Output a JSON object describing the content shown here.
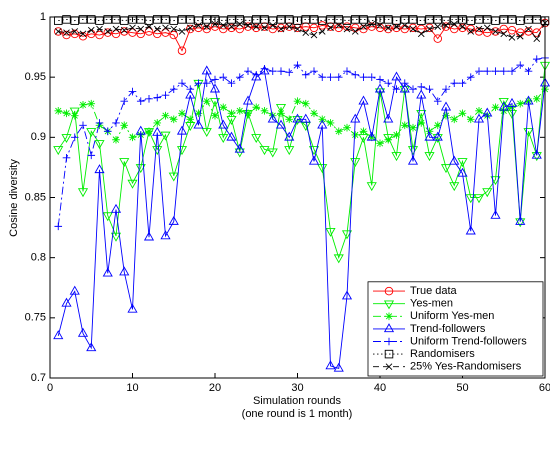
{
  "chart_data": {
    "type": "line",
    "xlabel": [
      "Simulation rounds",
      "(one round is 1 month)"
    ],
    "ylabel": "Cosine diversity",
    "x": [
      1,
      2,
      3,
      4,
      5,
      6,
      7,
      8,
      9,
      10,
      11,
      12,
      13,
      14,
      15,
      16,
      17,
      18,
      19,
      20,
      21,
      22,
      23,
      24,
      25,
      26,
      27,
      28,
      29,
      30,
      31,
      32,
      33,
      34,
      35,
      36,
      37,
      38,
      39,
      40,
      41,
      42,
      43,
      44,
      45,
      46,
      47,
      48,
      49,
      50,
      51,
      52,
      53,
      54,
      55,
      56,
      57,
      58,
      59,
      60
    ],
    "xlim": [
      0,
      60
    ],
    "xticks": [
      0,
      10,
      20,
      30,
      40,
      50,
      60
    ],
    "ylim": [
      0.7,
      1
    ],
    "yticks": [
      0.7,
      0.75,
      0.8,
      0.85,
      0.9,
      0.95,
      1
    ],
    "grid": false,
    "legend": "lower right",
    "series": [
      {
        "name": "True data",
        "color": "#ff0000",
        "marker": "o",
        "linestyle": "-",
        "values": [
          0.988,
          0.985,
          0.986,
          0.984,
          0.986,
          0.985,
          0.987,
          0.986,
          0.988,
          0.987,
          0.986,
          0.988,
          0.986,
          0.987,
          0.985,
          0.972,
          0.99,
          0.991,
          0.99,
          0.992,
          0.99,
          0.991,
          0.99,
          0.992,
          0.991,
          0.992,
          0.99,
          0.991,
          0.992,
          0.991,
          0.992,
          0.991,
          0.993,
          0.992,
          0.991,
          0.992,
          0.991,
          0.99,
          0.992,
          0.991,
          0.99,
          0.991,
          0.99,
          0.991,
          0.99,
          0.991,
          0.982,
          0.992,
          0.99,
          0.991,
          0.99,
          0.988,
          0.987,
          0.988,
          0.99,
          0.989,
          0.987,
          0.988,
          0.987,
          0.995
        ]
      },
      {
        "name": "Yes-men",
        "color": "#00ee00",
        "marker": "v",
        "linestyle": "-",
        "values": [
          0.89,
          0.9,
          0.922,
          0.855,
          0.905,
          0.895,
          0.835,
          0.818,
          0.88,
          0.862,
          0.875,
          0.905,
          0.89,
          0.902,
          0.868,
          0.89,
          0.91,
          0.945,
          0.905,
          0.93,
          0.9,
          0.915,
          0.888,
          0.92,
          0.9,
          0.89,
          0.888,
          0.925,
          0.89,
          0.915,
          0.91,
          0.89,
          0.875,
          0.822,
          0.8,
          0.82,
          0.88,
          0.9,
          0.86,
          0.938,
          0.9,
          0.885,
          0.94,
          0.89,
          0.92,
          0.885,
          0.9,
          0.875,
          0.86,
          0.88,
          0.85,
          0.85,
          0.855,
          0.865,
          0.93,
          0.92,
          0.83,
          0.905,
          0.885,
          0.96
        ]
      },
      {
        "name": "Uniform Yes-men",
        "color": "#00ee00",
        "marker": "*",
        "linestyle": "-.",
        "values": [
          0.922,
          0.92,
          0.918,
          0.927,
          0.928,
          0.91,
          0.905,
          0.898,
          0.91,
          0.9,
          0.902,
          0.905,
          0.912,
          0.918,
          0.915,
          0.92,
          0.915,
          0.92,
          0.93,
          0.918,
          0.925,
          0.92,
          0.922,
          0.92,
          0.925,
          0.922,
          0.918,
          0.92,
          0.915,
          0.93,
          0.928,
          0.92,
          0.915,
          0.912,
          0.905,
          0.908,
          0.902,
          0.905,
          0.9,
          0.895,
          0.898,
          0.902,
          0.91,
          0.908,
          0.912,
          0.905,
          0.91,
          0.918,
          0.915,
          0.92,
          0.915,
          0.922,
          0.918,
          0.925,
          0.922,
          0.925,
          0.928,
          0.93,
          0.932,
          0.94
        ]
      },
      {
        "name": "Trend-followers",
        "color": "#0000ff",
        "marker": "^",
        "linestyle": "-",
        "values": [
          0.735,
          0.762,
          0.772,
          0.737,
          0.725,
          0.873,
          0.787,
          0.84,
          0.788,
          0.757,
          0.905,
          0.817,
          0.904,
          0.818,
          0.83,
          0.905,
          0.935,
          0.91,
          0.955,
          0.94,
          0.91,
          0.9,
          0.89,
          0.93,
          0.95,
          0.955,
          0.915,
          0.91,
          0.9,
          0.915,
          0.915,
          0.88,
          0.91,
          0.71,
          0.708,
          0.768,
          0.915,
          0.93,
          0.9,
          0.94,
          0.915,
          0.95,
          0.94,
          0.88,
          0.935,
          0.9,
          0.9,
          0.925,
          0.88,
          0.87,
          0.822,
          0.915,
          0.92,
          0.835,
          0.925,
          0.928,
          0.83,
          0.93,
          0.885,
          0.945
        ]
      },
      {
        "name": "Uniform Trend-followers",
        "color": "#0000ff",
        "marker": "+",
        "linestyle": "-.",
        "values": [
          0.826,
          0.883,
          0.9,
          0.91,
          0.885,
          0.912,
          0.905,
          0.912,
          0.93,
          0.938,
          0.93,
          0.932,
          0.933,
          0.935,
          0.94,
          0.945,
          0.94,
          0.945,
          0.945,
          0.948,
          0.95,
          0.945,
          0.95,
          0.955,
          0.952,
          0.957,
          0.955,
          0.955,
          0.954,
          0.96,
          0.952,
          0.955,
          0.95,
          0.95,
          0.95,
          0.955,
          0.952,
          0.95,
          0.95,
          0.948,
          0.945,
          0.94,
          0.945,
          0.94,
          0.942,
          0.94,
          0.93,
          0.94,
          0.945,
          0.945,
          0.95,
          0.955,
          0.955,
          0.955,
          0.955,
          0.955,
          0.96,
          0.955,
          0.965,
          0.966
        ]
      },
      {
        "name": "Randomisers",
        "color": "#000000",
        "marker": "s",
        "linestyle": ":",
        "values": [
          0.997,
          0.998,
          0.997,
          0.998,
          0.998,
          0.997,
          0.998,
          0.998,
          0.997,
          0.998,
          0.998,
          0.997,
          0.998,
          0.998,
          0.997,
          0.998,
          0.998,
          0.997,
          0.998,
          0.998,
          0.997,
          0.998,
          0.998,
          0.997,
          0.998,
          0.998,
          0.997,
          0.998,
          0.998,
          0.997,
          0.998,
          0.998,
          0.997,
          0.998,
          0.998,
          0.997,
          0.998,
          0.998,
          0.997,
          0.998,
          0.998,
          0.997,
          0.998,
          0.998,
          0.997,
          0.998,
          0.998,
          0.997,
          0.998,
          0.998,
          0.997,
          0.998,
          0.998,
          0.997,
          0.998,
          0.998,
          0.997,
          0.998,
          0.998,
          0.997
        ]
      },
      {
        "name": "25% Yes-Randomisers",
        "color": "#000000",
        "marker": "x",
        "linestyle": "--",
        "values": [
          0.988,
          0.987,
          0.988,
          0.986,
          0.989,
          0.99,
          0.988,
          0.99,
          0.989,
          0.991,
          0.99,
          0.992,
          0.99,
          0.991,
          0.99,
          0.988,
          0.991,
          0.993,
          0.992,
          0.994,
          0.993,
          0.992,
          0.994,
          0.993,
          0.992,
          0.991,
          0.993,
          0.99,
          0.992,
          0.99,
          0.987,
          0.985,
          0.988,
          0.991,
          0.993,
          0.99,
          0.988,
          0.992,
          0.994,
          0.993,
          0.991,
          0.992,
          0.993,
          0.99,
          0.986,
          0.99,
          0.992,
          0.993,
          0.994,
          0.992,
          0.988,
          0.99,
          0.991,
          0.988,
          0.986,
          0.983,
          0.984,
          0.99,
          0.982,
          0.995
        ]
      }
    ]
  }
}
